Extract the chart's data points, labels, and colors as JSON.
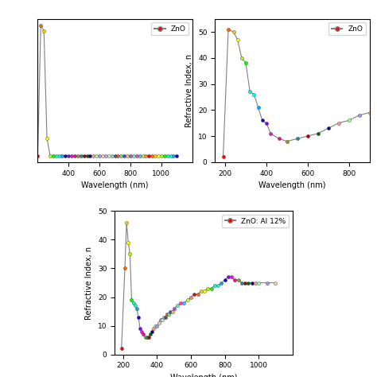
{
  "plot1": {
    "label": "ZnO",
    "xlabel": "Wavelength (nm)",
    "ylabel": "",
    "xlim": [
      200,
      1200
    ],
    "xticks": [
      400,
      600,
      800,
      1000
    ],
    "x": [
      200,
      220,
      240,
      260,
      280,
      300,
      320,
      340,
      360,
      380,
      400,
      420,
      440,
      460,
      480,
      500,
      520,
      540,
      560,
      580,
      600,
      620,
      640,
      660,
      680,
      700,
      720,
      740,
      760,
      780,
      800,
      820,
      840,
      860,
      880,
      900,
      920,
      940,
      960,
      980,
      1000,
      1020,
      1040,
      1060,
      1080,
      1100
    ],
    "y": [
      3.5,
      52,
      50,
      10,
      3.5,
      3.5,
      3.5,
      3.5,
      3.5,
      3.5,
      3.5,
      3.5,
      3.5,
      3.5,
      3.5,
      3.5,
      3.5,
      3.5,
      3.5,
      3.5,
      3.5,
      3.5,
      3.5,
      3.5,
      3.5,
      3.5,
      3.5,
      3.5,
      3.5,
      3.5,
      3.5,
      3.5,
      3.5,
      3.5,
      3.5,
      3.5,
      3.5,
      3.5,
      3.5,
      3.5,
      3.5,
      3.5,
      3.5,
      3.5,
      3.5,
      3.5
    ],
    "hide_yticks": true
  },
  "plot2": {
    "label": "ZnO",
    "xlabel": "Wavelength (nm)",
    "ylabel": "Refractive Index, n",
    "xlim": [
      150,
      900
    ],
    "ylim": [
      0,
      55
    ],
    "yticks": [
      0,
      10,
      20,
      30,
      40,
      50
    ],
    "xticks": [
      200,
      400,
      600,
      800
    ],
    "x": [
      190,
      215,
      240,
      260,
      280,
      300,
      320,
      340,
      360,
      380,
      400,
      420,
      460,
      500,
      550,
      600,
      650,
      700,
      750,
      800,
      850,
      900
    ],
    "y": [
      2,
      51,
      50,
      47,
      40,
      38,
      27,
      26,
      21,
      16,
      15,
      11,
      9,
      8,
      9,
      10,
      11,
      13,
      15,
      16,
      18,
      19
    ]
  },
  "plot3": {
    "label": "ZnO: Al 12%",
    "xlabel": "Wavelength (nm)",
    "ylabel": "Refractive Index, n",
    "xlim": [
      150,
      1200
    ],
    "ylim": [
      0,
      50
    ],
    "yticks": [
      0,
      10,
      20,
      30,
      40,
      50
    ],
    "xticks": [
      200,
      400,
      600,
      800,
      1000
    ],
    "x": [
      190,
      210,
      220,
      230,
      240,
      250,
      260,
      270,
      280,
      290,
      300,
      310,
      320,
      330,
      340,
      350,
      360,
      370,
      380,
      390,
      400,
      410,
      420,
      430,
      440,
      450,
      460,
      470,
      480,
      490,
      500,
      520,
      540,
      560,
      580,
      600,
      620,
      640,
      660,
      680,
      700,
      720,
      740,
      760,
      780,
      800,
      820,
      840,
      860,
      880,
      900,
      920,
      940,
      960,
      980,
      1000,
      1050,
      1100
    ],
    "y": [
      2,
      30,
      46,
      39,
      35,
      19,
      18,
      17,
      16,
      13,
      9,
      8,
      7,
      6,
      6,
      6,
      7,
      8,
      9,
      10,
      10,
      11,
      12,
      12,
      13,
      13,
      14,
      14,
      15,
      15,
      16,
      17,
      18,
      18,
      19,
      20,
      21,
      21,
      22,
      22,
      23,
      23,
      24,
      24,
      25,
      26,
      27,
      27,
      26,
      26,
      25,
      25,
      25,
      25,
      25,
      25,
      25,
      25
    ]
  },
  "colors": [
    "#FF0000",
    "#FF6600",
    "#FFCC00",
    "#FFFF00",
    "#AAFF00",
    "#00FF00",
    "#00FFCC",
    "#00FFFF",
    "#00AAFF",
    "#0000FF",
    "#8800FF",
    "#FF00FF",
    "#FF0099",
    "#999900",
    "#009999",
    "#AA0000",
    "#006600",
    "#000088",
    "#FF9999",
    "#99FF99",
    "#9999FF",
    "#FFCC99",
    "#CC99FF",
    "#99FFCC",
    "#BBBBBB",
    "#555555",
    "#FF4444",
    "#44FF44",
    "#4444FF",
    "#FFBB44",
    "#BB44FF",
    "#44FFBB",
    "#FF44BB",
    "#44BBFF",
    "#BBFF44",
    "#FF8844"
  ]
}
